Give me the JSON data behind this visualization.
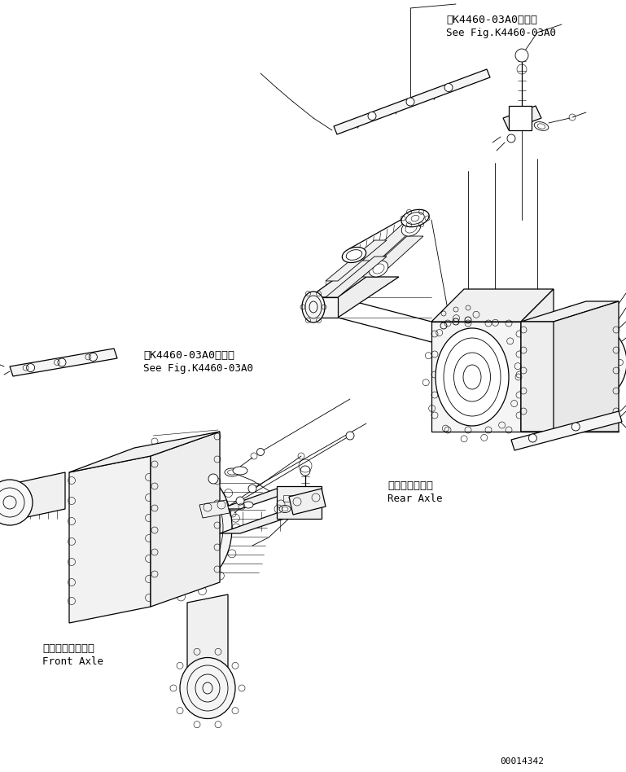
{
  "bg_color": "#ffffff",
  "line_color": "#000000",
  "fig_width": 7.69,
  "fig_height": 9.48,
  "dpi": 100,
  "title_ann1_jp": "第K4460-03A0図参照",
  "title_ann1_en": "See Fig.K4460-03A0",
  "title_ann2_jp": "第K4460-03A0図参照",
  "title_ann2_en": "See Fig.K4460-03A0",
  "rear_axle_jp": "リヤーアクスル",
  "rear_axle_en": "Rear Axle",
  "front_axle_jp": "フロントアクスル",
  "front_axle_en": "Front Axle",
  "part_number": "00014342"
}
